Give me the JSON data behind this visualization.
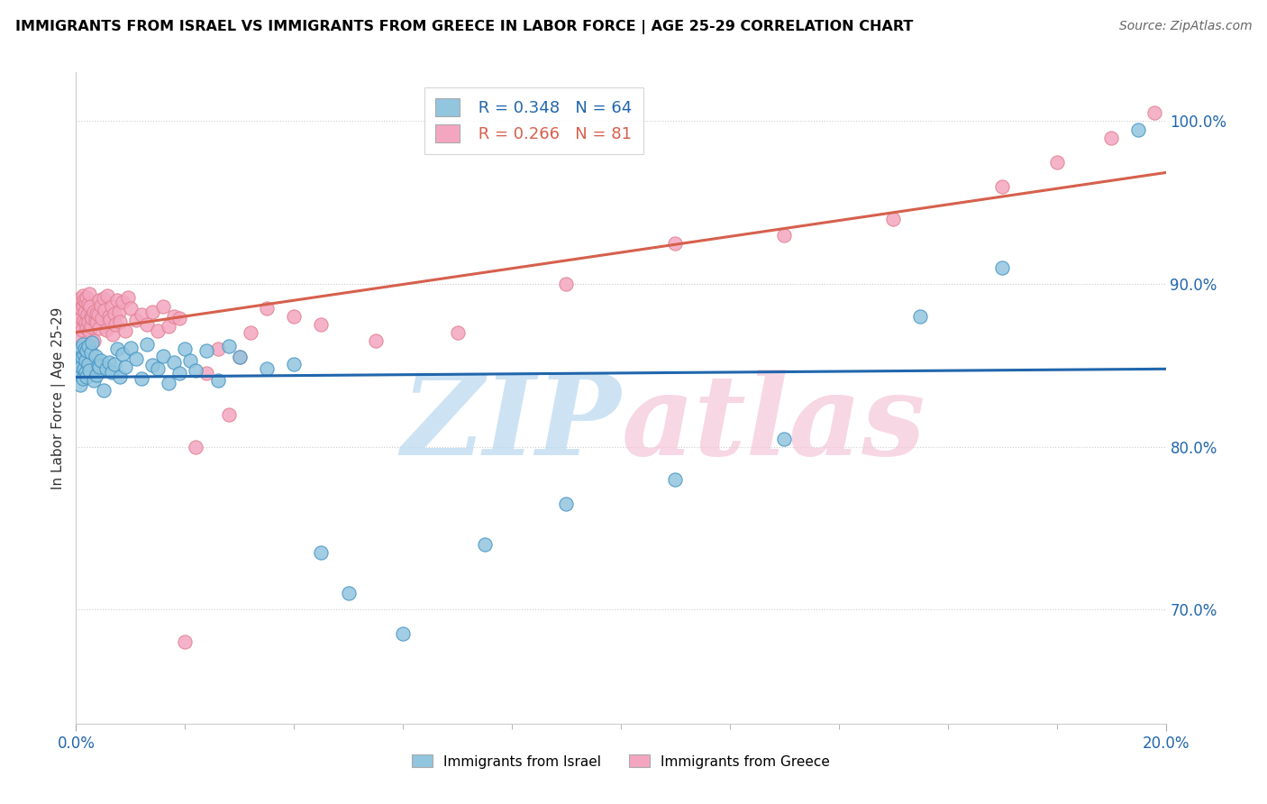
{
  "title": "IMMIGRANTS FROM ISRAEL VS IMMIGRANTS FROM GREECE IN LABOR FORCE | AGE 25-29 CORRELATION CHART",
  "source": "Source: ZipAtlas.com",
  "ylabel": "In Labor Force | Age 25-29",
  "legend_label_israel": "Immigrants from Israel",
  "legend_label_greece": "Immigrants from Greece",
  "israel_color": "#92c5de",
  "greece_color": "#f4a6c0",
  "israel_line_color": "#2166ac",
  "greece_line_color": "#d6604d",
  "israel_edge_color": "#4393c3",
  "greece_edge_color": "#e08090",
  "xmin": 0.0,
  "xmax": 20.0,
  "ymin": 63.0,
  "ymax": 103.0,
  "ytick_vals": [
    70,
    80,
    90,
    100
  ],
  "israel_R": 0.348,
  "israel_N": 64,
  "greece_R": 0.266,
  "greece_N": 81,
  "watermark_zip_color": "#b8d8f0",
  "watermark_atlas_color": "#f5c6d8",
  "israel_x": [
    0.05,
    0.07,
    0.08,
    0.09,
    0.1,
    0.11,
    0.12,
    0.13,
    0.14,
    0.15,
    0.16,
    0.17,
    0.18,
    0.19,
    0.2,
    0.22,
    0.23,
    0.25,
    0.27,
    0.3,
    0.32,
    0.35,
    0.38,
    0.4,
    0.43,
    0.46,
    0.5,
    0.55,
    0.6,
    0.65,
    0.7,
    0.75,
    0.8,
    0.85,
    0.9,
    1.0,
    1.1,
    1.2,
    1.3,
    1.4,
    1.5,
    1.6,
    1.7,
    1.8,
    1.9,
    2.0,
    2.1,
    2.2,
    2.4,
    2.6,
    2.8,
    3.0,
    3.5,
    4.0,
    4.5,
    5.0,
    6.0,
    7.5,
    9.0,
    11.0,
    13.0,
    15.5,
    17.0,
    19.5
  ],
  "israel_y": [
    84.5,
    85.2,
    83.8,
    86.1,
    84.9,
    85.5,
    84.2,
    86.3,
    85.7,
    84.8,
    86.0,
    85.3,
    84.6,
    85.9,
    84.3,
    86.2,
    85.1,
    84.7,
    85.8,
    86.4,
    84.1,
    85.6,
    84.4,
    85.0,
    84.9,
    85.3,
    83.5,
    84.8,
    85.2,
    84.6,
    85.1,
    86.0,
    84.3,
    85.7,
    84.9,
    86.1,
    85.4,
    84.2,
    86.3,
    85.0,
    84.8,
    85.6,
    83.9,
    85.2,
    84.5,
    86.0,
    85.3,
    84.7,
    85.9,
    84.1,
    86.2,
    85.5,
    84.8,
    85.1,
    73.5,
    71.0,
    68.5,
    74.0,
    76.5,
    78.0,
    80.5,
    88.0,
    91.0,
    99.5
  ],
  "greece_x": [
    0.04,
    0.06,
    0.07,
    0.08,
    0.09,
    0.1,
    0.11,
    0.12,
    0.13,
    0.14,
    0.15,
    0.16,
    0.17,
    0.18,
    0.19,
    0.2,
    0.21,
    0.22,
    0.23,
    0.24,
    0.25,
    0.26,
    0.27,
    0.28,
    0.3,
    0.32,
    0.33,
    0.35,
    0.37,
    0.38,
    0.4,
    0.42,
    0.43,
    0.45,
    0.47,
    0.5,
    0.52,
    0.55,
    0.58,
    0.6,
    0.63,
    0.65,
    0.68,
    0.7,
    0.73,
    0.75,
    0.78,
    0.8,
    0.85,
    0.9,
    0.95,
    1.0,
    1.1,
    1.2,
    1.3,
    1.4,
    1.5,
    1.6,
    1.7,
    1.8,
    1.9,
    2.0,
    2.2,
    2.4,
    2.6,
    2.8,
    3.0,
    3.2,
    3.5,
    4.0,
    4.5,
    5.5,
    7.0,
    9.0,
    11.0,
    13.0,
    15.0,
    17.0,
    18.0,
    19.0,
    19.8
  ],
  "greece_y": [
    87.5,
    88.2,
    86.8,
    89.1,
    87.9,
    88.5,
    87.2,
    89.3,
    88.7,
    87.8,
    89.0,
    88.3,
    87.6,
    88.9,
    87.3,
    89.2,
    88.1,
    87.7,
    88.8,
    89.4,
    87.1,
    88.6,
    87.4,
    88.0,
    87.9,
    88.3,
    86.5,
    87.8,
    88.2,
    87.6,
    88.1,
    89.0,
    87.3,
    88.7,
    87.9,
    89.1,
    88.4,
    87.2,
    89.3,
    88.0,
    87.8,
    88.6,
    86.9,
    88.2,
    87.5,
    89.0,
    88.3,
    87.7,
    88.9,
    87.1,
    89.2,
    88.5,
    87.8,
    88.1,
    87.5,
    88.3,
    87.1,
    88.6,
    87.4,
    88.0,
    87.9,
    68.0,
    80.0,
    84.5,
    86.0,
    82.0,
    85.5,
    87.0,
    88.5,
    88.0,
    87.5,
    86.5,
    87.0,
    90.0,
    92.5,
    93.0,
    94.0,
    96.0,
    97.5,
    99.0,
    100.5
  ]
}
